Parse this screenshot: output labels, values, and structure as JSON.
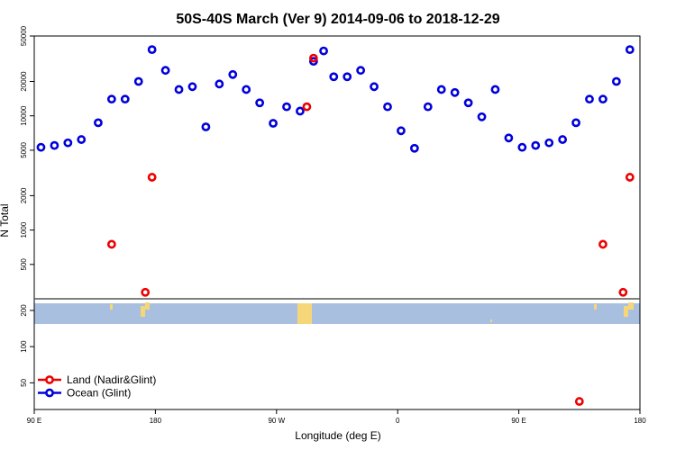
{
  "chart_data": {
    "type": "scatter",
    "title": "50S-40S March (Ver 9)   2014-09-06 to 2018-12-29",
    "xlabel": "Longitude (deg E)",
    "ylabel": "N Total",
    "x_ticks": [
      {
        "value": 90,
        "label": "90 E"
      },
      {
        "value": 180,
        "label": "180"
      },
      {
        "value": 270,
        "label": "90 W"
      },
      {
        "value": 360,
        "label": "0"
      },
      {
        "value": 450,
        "label": "90 E"
      },
      {
        "value": 540,
        "label": "180"
      }
    ],
    "xlim": [
      90,
      540
    ],
    "y_scale": "log",
    "upper_panel": {
      "ylim": [
        250,
        50000
      ],
      "y_ticks": [
        {
          "value": 500,
          "label": "500"
        },
        {
          "value": 1000,
          "label": "1000"
        },
        {
          "value": 2000,
          "label": "2000"
        },
        {
          "value": 5000,
          "label": "5000"
        },
        {
          "value": 10000,
          "label": "10000"
        },
        {
          "value": 20000,
          "label": "20000"
        },
        {
          "value": 50000,
          "label": "50000"
        }
      ]
    },
    "lower_panel": {
      "ylim": [
        30,
        250
      ],
      "y_ticks": [
        {
          "value": 50,
          "label": "50"
        },
        {
          "value": 100,
          "label": "100"
        },
        {
          "value": 200,
          "label": "200"
        }
      ]
    },
    "legend": {
      "placement": "bottom-left",
      "entries": [
        {
          "label": "Land (Nadir&Glint)",
          "color": "#ee0000"
        },
        {
          "label": "Ocean (Glint)",
          "color": "#0000dd"
        }
      ]
    },
    "map_strip_colors": {
      "ocean": "#a8bfdf",
      "land": "#f5d77a"
    },
    "series": [
      {
        "name": "Land (Nadir&Glint)",
        "color": "#ee0000",
        "x": [
          147.5,
          172.5,
          177.5,
          292.5,
          297.5,
          495.0,
          512.5,
          527.5,
          532.5
        ],
        "y": [
          750,
          285,
          2900,
          12000,
          32000,
          35,
          750,
          285,
          2900
        ]
      },
      {
        "name": "Ocean (Glint)",
        "color": "#0000dd",
        "x": [
          95,
          105,
          115,
          125,
          137.5,
          147.5,
          157.5,
          167.5,
          177.5,
          187.5,
          197.5,
          207.5,
          217.5,
          227.5,
          237.5,
          247.5,
          257.5,
          267.5,
          277.5,
          287.5,
          297.5,
          305,
          312.5,
          322.5,
          332.5,
          342.5,
          352.5,
          362.5,
          372.5,
          382.5,
          392.5,
          402.5,
          412.5,
          422.5,
          432.5,
          442.5,
          452.5,
          462.5,
          472.5,
          482.5,
          492.5,
          502.5,
          512.5,
          522.5,
          532.5
        ],
        "y": [
          5300,
          5500,
          5800,
          6200,
          8700,
          14000,
          14000,
          20000,
          38000,
          25000,
          17000,
          18000,
          8000,
          19000,
          23000,
          17000,
          13000,
          8600,
          12000,
          11000,
          30000,
          37000,
          22000,
          22000,
          25000,
          18000,
          12000,
          7400,
          5200,
          12000,
          17000,
          16000,
          13000,
          9800,
          17000,
          6400,
          5300,
          5500,
          5800,
          6200,
          8700,
          14000,
          14000,
          20000,
          38000
        ]
      }
    ]
  }
}
